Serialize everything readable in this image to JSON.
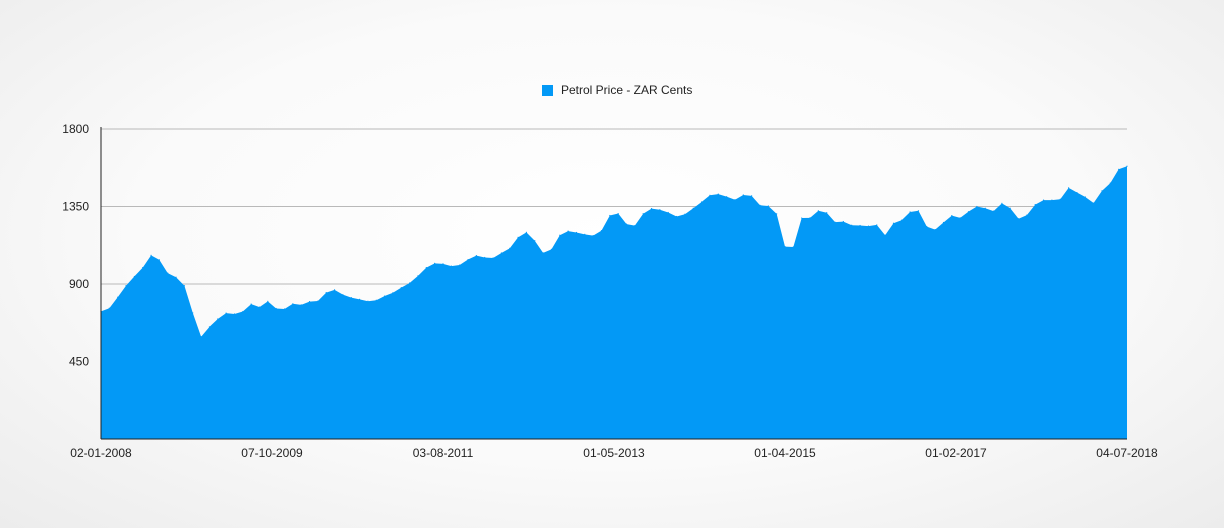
{
  "colors": {
    "series": "#0399f6",
    "grid": "#b9b9b9",
    "axis": "#222222"
  },
  "legend": {
    "label": "Petrol Price - ZAR Cents",
    "placement": "top-center"
  },
  "chart_data": {
    "type": "area",
    "title": "",
    "xlabel": "",
    "ylabel": "",
    "ylim": [
      0,
      1800
    ],
    "grid": true,
    "y_ticks": [
      "450",
      "900",
      "1350",
      "1800"
    ],
    "x_tick_labels": [
      "02-01-2008",
      "07-10-2009",
      "03-08-2011",
      "01-05-2013",
      "01-04-2015",
      "01-02-2017",
      "04-07-2018"
    ],
    "series": [
      {
        "name": "Petrol Price - ZAR Cents",
        "values": [
          741,
          759,
          823,
          890,
          944,
          995,
          1066,
          1040,
          963,
          939,
          890,
          732,
          594,
          651,
          697,
          731,
          726,
          740,
          783,
          766,
          799,
          758,
          755,
          785,
          779,
          798,
          801,
          850,
          866,
          838,
          821,
          811,
          800,
          806,
          830,
          849,
          879,
          906,
          947,
          995,
          1020,
          1017,
          1004,
          1010,
          1042,
          1065,
          1054,
          1051,
          1080,
          1107,
          1171,
          1200,
          1151,
          1081,
          1101,
          1183,
          1207,
          1199,
          1188,
          1181,
          1210,
          1298,
          1309,
          1248,
          1239,
          1308,
          1338,
          1331,
          1315,
          1292,
          1305,
          1340,
          1376,
          1415,
          1422,
          1407,
          1389,
          1417,
          1412,
          1357,
          1353,
          1307,
          1117,
          1115,
          1283,
          1284,
          1325,
          1314,
          1259,
          1262,
          1241,
          1240,
          1236,
          1243,
          1183,
          1253,
          1271,
          1318,
          1325,
          1233,
          1216,
          1257,
          1297,
          1284,
          1320,
          1350,
          1340,
          1323,
          1368,
          1340,
          1279,
          1300,
          1361,
          1387,
          1387,
          1392,
          1458,
          1431,
          1405,
          1370,
          1441,
          1486,
          1566,
          1584
        ]
      }
    ]
  }
}
